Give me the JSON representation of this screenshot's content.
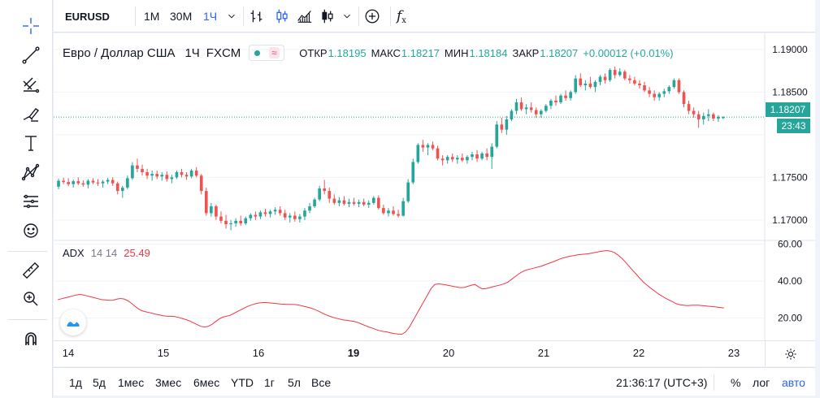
{
  "toolbar": {
    "symbol": "EURUSD",
    "intervals": [
      "1М",
      "30М",
      "1Ч"
    ],
    "active_interval": "1Ч",
    "add_symbol_icon": "plus-circle-icon",
    "indicators_icon": "fx-icon"
  },
  "left_tools": [
    "crosshair-icon",
    "trend-line-icon",
    "fib-icon",
    "brush-icon",
    "text-icon",
    "pattern-icon",
    "forecast-icon",
    "emoji-icon",
    "ruler-icon",
    "zoom-in-icon",
    "magnet-icon"
  ],
  "legend": {
    "title": "Евро / Доллар США",
    "interval": "1Ч",
    "exchange": "FXCM",
    "open_label": "ОТКР",
    "open": "1.18195",
    "high_label": "МАКС",
    "high": "1.18217",
    "low_label": "МИН",
    "low": "1.18184",
    "close_label": "ЗАКР",
    "close": "1.18207",
    "change": "+0.00012 (+0.01%)"
  },
  "adx_legend": {
    "name": "ADX",
    "params": "14 14",
    "value": "25.49"
  },
  "price_scale": {
    "ticks": [
      "1.19000",
      "1.18500",
      "1.17500",
      "1.17000"
    ],
    "last_price": "1.18207",
    "countdown": "23:43"
  },
  "adx_scale": {
    "ticks": [
      "60.00",
      "40.00",
      "20.00"
    ]
  },
  "time_axis": {
    "labels": [
      "14",
      "15",
      "16",
      "19",
      "20",
      "21",
      "22",
      "23"
    ],
    "bold": "19"
  },
  "bottom": {
    "ranges": [
      "1д",
      "5д",
      "1мес",
      "3мес",
      "6мес",
      "YTD",
      "1г",
      "5л",
      "Все"
    ],
    "clock": "21:36:17 (UTC+3)",
    "percent": "%",
    "log": "лог",
    "auto": "авто"
  },
  "colors": {
    "up": "#26a69a",
    "down": "#ef5350",
    "adx": "#f23645",
    "accent": "#2962ff"
  },
  "chart_data": {
    "type": "candlestick",
    "y_price_range": [
      1.1676,
      1.1919
    ],
    "y_adx_range": [
      8,
      62
    ],
    "candles": [
      [
        1.1739,
        1.17485,
        1.1736,
        1.1746
      ],
      [
        1.1746,
        1.17495,
        1.1742,
        1.17445
      ],
      [
        1.17445,
        1.1749,
        1.17395,
        1.1742
      ],
      [
        1.1742,
        1.17475,
        1.1738,
        1.17455
      ],
      [
        1.17455,
        1.175,
        1.1741,
        1.1743
      ],
      [
        1.1743,
        1.17465,
        1.1739,
        1.17415
      ],
      [
        1.17415,
        1.1748,
        1.1737,
        1.1746
      ],
      [
        1.1746,
        1.1749,
        1.1742,
        1.1744
      ],
      [
        1.1744,
        1.1748,
        1.174,
        1.1743
      ],
      [
        1.1743,
        1.1747,
        1.1738,
        1.1745
      ],
      [
        1.1745,
        1.17495,
        1.1742,
        1.1747
      ],
      [
        1.1747,
        1.175,
        1.174,
        1.1743
      ],
      [
        1.1743,
        1.1745,
        1.173,
        1.1734
      ],
      [
        1.1734,
        1.174,
        1.1726,
        1.1738
      ],
      [
        1.1738,
        1.1752,
        1.1736,
        1.1749
      ],
      [
        1.1749,
        1.1768,
        1.1747,
        1.1764
      ],
      [
        1.1764,
        1.1772,
        1.1756,
        1.176
      ],
      [
        1.176,
        1.1765,
        1.1752,
        1.1756
      ],
      [
        1.1756,
        1.176,
        1.1748,
        1.1752
      ],
      [
        1.1752,
        1.1758,
        1.1746,
        1.1754
      ],
      [
        1.1754,
        1.1758,
        1.1748,
        1.1751
      ],
      [
        1.1751,
        1.1756,
        1.1746,
        1.1753
      ],
      [
        1.1753,
        1.1757,
        1.1745,
        1.1748
      ],
      [
        1.1748,
        1.1753,
        1.1743,
        1.175
      ],
      [
        1.175,
        1.1758,
        1.1748,
        1.1756
      ],
      [
        1.1756,
        1.176,
        1.175,
        1.1753
      ],
      [
        1.1753,
        1.1756,
        1.1747,
        1.1751
      ],
      [
        1.1751,
        1.176,
        1.1749,
        1.1758
      ],
      [
        1.1758,
        1.1762,
        1.175,
        1.1752
      ],
      [
        1.1752,
        1.1754,
        1.173,
        1.1734
      ],
      [
        1.1734,
        1.1738,
        1.1705,
        1.1708
      ],
      [
        1.1708,
        1.172,
        1.1704,
        1.1716
      ],
      [
        1.1716,
        1.1718,
        1.17,
        1.1704
      ],
      [
        1.1704,
        1.171,
        1.1696,
        1.1699
      ],
      [
        1.1699,
        1.1706,
        1.169,
        1.1695
      ],
      [
        1.1695,
        1.17,
        1.1688,
        1.1696
      ],
      [
        1.1696,
        1.1702,
        1.1692,
        1.1699
      ],
      [
        1.1699,
        1.1705,
        1.1693,
        1.1696
      ],
      [
        1.1696,
        1.1704,
        1.1694,
        1.1702
      ],
      [
        1.1702,
        1.1708,
        1.1699,
        1.1706
      ],
      [
        1.1706,
        1.171,
        1.17,
        1.1704
      ],
      [
        1.1704,
        1.1711,
        1.1701,
        1.1709
      ],
      [
        1.1709,
        1.1713,
        1.1704,
        1.1707
      ],
      [
        1.1707,
        1.1712,
        1.1703,
        1.171
      ],
      [
        1.171,
        1.1715,
        1.1706,
        1.1712
      ],
      [
        1.1712,
        1.1716,
        1.1705,
        1.1708
      ],
      [
        1.1708,
        1.1712,
        1.17,
        1.1703
      ],
      [
        1.1703,
        1.1708,
        1.1697,
        1.1705
      ],
      [
        1.1705,
        1.171,
        1.1698,
        1.1701
      ],
      [
        1.1701,
        1.1707,
        1.1697,
        1.1704
      ],
      [
        1.1704,
        1.1714,
        1.17,
        1.1711
      ],
      [
        1.1711,
        1.172,
        1.1708,
        1.1716
      ],
      [
        1.1716,
        1.1726,
        1.1714,
        1.1724
      ],
      [
        1.1724,
        1.174,
        1.1722,
        1.1737
      ],
      [
        1.1737,
        1.1747,
        1.173,
        1.1734
      ],
      [
        1.1734,
        1.1738,
        1.172,
        1.1725
      ],
      [
        1.1725,
        1.173,
        1.1718,
        1.172
      ],
      [
        1.172,
        1.1727,
        1.1716,
        1.1723
      ],
      [
        1.1723,
        1.1728,
        1.1717,
        1.1719
      ],
      [
        1.1719,
        1.1725,
        1.1715,
        1.1721
      ],
      [
        1.1721,
        1.1726,
        1.1717,
        1.1719
      ],
      [
        1.1719,
        1.1724,
        1.1715,
        1.1721
      ],
      [
        1.1721,
        1.1725,
        1.1716,
        1.1718
      ],
      [
        1.1718,
        1.1723,
        1.1714,
        1.172
      ],
      [
        1.172,
        1.1728,
        1.1718,
        1.1726
      ],
      [
        1.1726,
        1.1729,
        1.1712,
        1.1714
      ],
      [
        1.1714,
        1.1718,
        1.1706,
        1.1708
      ],
      [
        1.1708,
        1.1714,
        1.1704,
        1.1711
      ],
      [
        1.1711,
        1.1716,
        1.1705,
        1.1707
      ],
      [
        1.1707,
        1.1712,
        1.1703,
        1.1705
      ],
      [
        1.1705,
        1.1726,
        1.1704,
        1.1722
      ],
      [
        1.1722,
        1.1748,
        1.172,
        1.1744
      ],
      [
        1.1744,
        1.1772,
        1.1742,
        1.1768
      ],
      [
        1.1768,
        1.179,
        1.1766,
        1.1788
      ],
      [
        1.1788,
        1.1794,
        1.178,
        1.1785
      ],
      [
        1.1785,
        1.179,
        1.1776,
        1.1788
      ],
      [
        1.1788,
        1.1792,
        1.1782,
        1.1784
      ],
      [
        1.1784,
        1.1787,
        1.177,
        1.1772
      ],
      [
        1.1772,
        1.1776,
        1.1764,
        1.177
      ],
      [
        1.177,
        1.1776,
        1.1766,
        1.1774
      ],
      [
        1.1774,
        1.1778,
        1.1768,
        1.1771
      ],
      [
        1.1771,
        1.1776,
        1.1766,
        1.1773
      ],
      [
        1.1773,
        1.1778,
        1.1768,
        1.177
      ],
      [
        1.177,
        1.1776,
        1.1766,
        1.1774
      ],
      [
        1.1774,
        1.178,
        1.177,
        1.1777
      ],
      [
        1.1777,
        1.1782,
        1.1768,
        1.1772
      ],
      [
        1.1772,
        1.178,
        1.177,
        1.1778
      ],
      [
        1.1778,
        1.1784,
        1.177,
        1.1774
      ],
      [
        1.1774,
        1.179,
        1.176,
        1.1786
      ],
      [
        1.1786,
        1.1816,
        1.1784,
        1.1812
      ],
      [
        1.1812,
        1.182,
        1.1802,
        1.1806
      ],
      [
        1.1806,
        1.1822,
        1.18,
        1.1818
      ],
      [
        1.1818,
        1.183,
        1.1816,
        1.1828
      ],
      [
        1.1828,
        1.1842,
        1.1824,
        1.1838
      ],
      [
        1.1838,
        1.1844,
        1.1828,
        1.183
      ],
      [
        1.183,
        1.1836,
        1.1824,
        1.1832
      ],
      [
        1.1832,
        1.1838,
        1.1826,
        1.1829
      ],
      [
        1.1829,
        1.1832,
        1.182,
        1.1824
      ],
      [
        1.1824,
        1.183,
        1.182,
        1.1828
      ],
      [
        1.1828,
        1.1836,
        1.1826,
        1.1834
      ],
      [
        1.1834,
        1.1842,
        1.183,
        1.184
      ],
      [
        1.184,
        1.1846,
        1.1834,
        1.1838
      ],
      [
        1.1838,
        1.1848,
        1.1836,
        1.1846
      ],
      [
        1.1846,
        1.1852,
        1.184,
        1.1843
      ],
      [
        1.1843,
        1.1852,
        1.184,
        1.185
      ],
      [
        1.185,
        1.187,
        1.1848,
        1.1866
      ],
      [
        1.1866,
        1.1872,
        1.1856,
        1.1858
      ],
      [
        1.1858,
        1.1864,
        1.1852,
        1.186
      ],
      [
        1.186,
        1.1868,
        1.1854,
        1.1856
      ],
      [
        1.1856,
        1.1864,
        1.185,
        1.1862
      ],
      [
        1.1862,
        1.187,
        1.1858,
        1.1868
      ],
      [
        1.1868,
        1.1872,
        1.186,
        1.1864
      ],
      [
        1.1864,
        1.1878,
        1.1862,
        1.1876
      ],
      [
        1.1876,
        1.188,
        1.1866,
        1.187
      ],
      [
        1.187,
        1.1878,
        1.1868,
        1.1874
      ],
      [
        1.1874,
        1.1876,
        1.1864,
        1.1866
      ],
      [
        1.1866,
        1.187,
        1.186,
        1.1864
      ],
      [
        1.1864,
        1.1868,
        1.1858,
        1.186
      ],
      [
        1.186,
        1.1864,
        1.1854,
        1.1858
      ],
      [
        1.1858,
        1.1862,
        1.185,
        1.1852
      ],
      [
        1.1852,
        1.1856,
        1.1844,
        1.1848
      ],
      [
        1.1848,
        1.1852,
        1.184,
        1.1844
      ],
      [
        1.1844,
        1.185,
        1.184,
        1.1848
      ],
      [
        1.1848,
        1.1854,
        1.1844,
        1.1851
      ],
      [
        1.1851,
        1.1858,
        1.1848,
        1.1856
      ],
      [
        1.1856,
        1.1866,
        1.1854,
        1.1864
      ],
      [
        1.1864,
        1.1866,
        1.1848,
        1.185
      ],
      [
        1.185,
        1.1852,
        1.1832,
        1.1836
      ],
      [
        1.1836,
        1.184,
        1.1824,
        1.1828
      ],
      [
        1.1828,
        1.1832,
        1.182,
        1.1824
      ],
      [
        1.1824,
        1.1828,
        1.1808,
        1.1818
      ],
      [
        1.1818,
        1.1826,
        1.1812,
        1.1822
      ],
      [
        1.1822,
        1.183,
        1.1816,
        1.1824
      ],
      [
        1.1824,
        1.1826,
        1.1816,
        1.1819
      ],
      [
        1.1819,
        1.1823,
        1.1815,
        1.1821
      ],
      [
        1.18195,
        1.18217,
        1.18184,
        1.18207
      ]
    ],
    "adx": [
      30,
      30.5,
      31,
      31.5,
      32,
      32.5,
      32.8,
      32.5,
      32,
      31.5,
      31,
      30.5,
      30,
      29.8,
      29.6,
      29.7,
      30.2,
      30.6,
      30.4,
      29.5,
      28.2,
      26.5,
      25,
      24,
      23.4,
      23,
      22.5,
      22,
      21.6,
      21.2,
      21,
      21,
      20.8,
      20.4,
      19.8,
      19.2,
      18.5,
      17.5,
      16.5,
      15.6,
      15.2,
      15.5,
      16.5,
      18,
      19.5,
      20.5,
      21,
      21.5,
      22.5,
      23.5,
      24.5,
      25.5,
      26.5,
      27.2,
      27.8,
      28.2,
      28.4,
      28.4,
      28.2,
      28,
      27.8,
      27.6,
      27.5,
      27.4,
      27.4,
      27.3,
      27,
      26.5,
      26,
      25.5,
      24.8,
      24,
      23,
      22,
      21.2,
      20.5,
      20,
      19.5,
      19,
      18.8,
      18.5,
      18.2,
      17.6,
      16.8,
      16,
      15.2,
      14.5,
      13.8,
      13.2,
      12.8,
      12.5,
      12,
      11.6,
      11.4,
      11.3,
      12.5,
      15,
      18.5,
      22,
      25.5,
      29,
      32.5,
      36,
      38.2,
      38.5,
      38.3,
      38,
      37.6,
      37.2,
      36.8,
      36.5,
      36.6,
      37.2,
      37.8,
      38.2,
      36.8,
      35.8,
      36,
      36.5,
      37,
      37.5,
      38,
      38.6,
      39.5,
      41,
      42.5,
      44,
      45.2,
      46,
      46.5,
      47,
      47.5,
      48,
      48.8,
      49.5,
      50.2,
      51,
      51.8,
      52.5,
      53,
      53.5,
      53.8,
      54.2,
      54.4,
      54.6,
      54.8,
      55.2,
      55.6,
      56,
      56.3,
      56.5,
      56.2,
      55.5,
      54.2,
      52.5,
      50.5,
      48.2,
      46,
      43.8,
      41.6,
      39.5,
      37.8,
      36.2,
      34.8,
      33.2,
      32,
      30.8,
      29.8,
      28.8,
      27.8,
      27.2,
      27,
      26.8,
      26.9,
      27,
      27,
      26.8,
      26.6,
      26.4,
      26.2,
      26,
      25.8,
      25.49
    ]
  }
}
